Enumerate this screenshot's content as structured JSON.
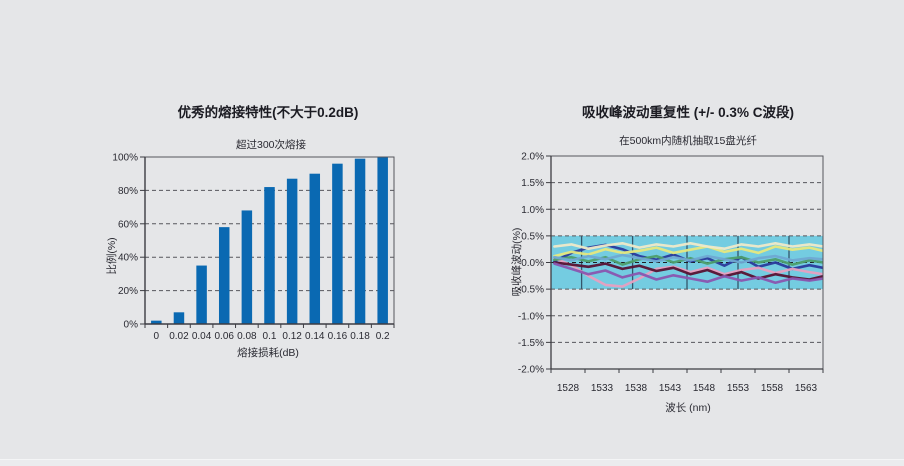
{
  "page": {
    "background": "#e5e6e8",
    "text_color": "#1b1b22"
  },
  "chart_data": [
    {
      "id": "splice-loss-distribution",
      "type": "bar",
      "title": "优秀的熔接特性(不大于0.2dB)",
      "subtitle": "超过300次熔接",
      "xlabel": "熔接损耗(dB)",
      "ylabel": "比例(%)",
      "categories": [
        "0",
        "0.02",
        "0.04",
        "0.06",
        "0.08",
        "0.1",
        "0.12",
        "0.14",
        "0.16",
        "0.18",
        "0.2"
      ],
      "values": [
        2,
        7,
        35,
        58,
        68,
        82,
        87,
        90,
        96,
        99,
        100
      ],
      "ylim": [
        0,
        100
      ],
      "ytick_values": [
        0,
        20,
        40,
        60,
        80,
        100
      ],
      "ytick_labels": [
        "0%",
        "20%",
        "40%",
        "60%",
        "80%",
        "100%"
      ],
      "grid_values": [
        20,
        40,
        60,
        80
      ],
      "grid": "horizontal-dashed",
      "legend": "none",
      "bar_color": "#0a69b2",
      "axis_color": "#3c3c42",
      "border_color": "#55555c",
      "grid_color": "#56565c"
    },
    {
      "id": "absorption-peak-repeatability",
      "type": "line",
      "title": "吸收峰波动重复性 (+/- 0.3% C波段)",
      "subtitle": "在500km内随机抽取15盘光纤",
      "xlabel": "波长 (nm)",
      "ylabel": "吸收峰波动(%)",
      "xlim": [
        1525.5,
        1565.5
      ],
      "ylim": [
        -2,
        2
      ],
      "x_tick_values": [
        1528,
        1533,
        1538,
        1543,
        1548,
        1553,
        1558,
        1563
      ],
      "x_tick_labels": [
        "1528",
        "1533",
        "1538",
        "1543",
        "1548",
        "1553",
        "1558",
        "1563"
      ],
      "ytick_values": [
        2,
        1.5,
        1,
        0.5,
        0,
        -0.5,
        -1,
        -1.5,
        -2
      ],
      "ytick_labels": [
        "2.0%",
        "1.5%",
        "1.0%",
        "0.5%",
        "0.0%",
        "-0.5%",
        "-1.0%",
        "-1.5%",
        "-2.0%"
      ],
      "grid_values": [
        1.5,
        1,
        -1,
        -1.5
      ],
      "grid": "horizontal-dashed",
      "legend": "none",
      "zero_line_value": 0,
      "axis_color": "#3c3c42",
      "border_color": "#55555c",
      "grid_color": "#56565c",
      "zero_line_color": "#1f1f24",
      "band": {
        "y_from": -0.5,
        "y_to": 0.5,
        "color": "#74cce1",
        "gridline_color": "#33566b",
        "gridlines_nm": [
          1530,
          1537.5,
          1545.5,
          1553,
          1560.5
        ]
      },
      "x": [
        1526,
        1528.5,
        1531,
        1533.5,
        1536,
        1538.5,
        1541,
        1543.5,
        1546,
        1548.5,
        1551,
        1553.5,
        1556,
        1558.5,
        1561,
        1563.5,
        1565.5
      ],
      "series": [
        {
          "name": "fiber-navy",
          "color": "#2a3a9b",
          "y": [
            0.02,
            0.18,
            0.28,
            0.33,
            0.25,
            0.12,
            0.05,
            0.15,
            0.02,
            0.08,
            -0.06,
            0.1,
            -0.08,
            0.0,
            -0.12,
            -0.05,
            -0.1
          ]
        },
        {
          "name": "fiber-yellow",
          "color": "#e6e77d",
          "y": [
            0.12,
            0.2,
            0.15,
            0.25,
            0.18,
            0.22,
            0.28,
            0.18,
            0.24,
            0.3,
            0.2,
            0.26,
            0.18,
            0.3,
            0.24,
            0.28,
            0.22
          ]
        },
        {
          "name": "fiber-pink",
          "color": "#e79fc0",
          "y": [
            0.08,
            -0.05,
            -0.25,
            -0.42,
            -0.45,
            -0.3,
            -0.12,
            -0.08,
            -0.18,
            -0.1,
            -0.22,
            -0.14,
            -0.1,
            -0.2,
            -0.12,
            -0.18,
            -0.22
          ]
        },
        {
          "name": "fiber-maroon",
          "color": "#571233",
          "y": [
            0.0,
            -0.04,
            -0.08,
            -0.02,
            -0.12,
            -0.06,
            -0.16,
            -0.1,
            -0.22,
            -0.14,
            -0.26,
            -0.18,
            -0.3,
            -0.22,
            -0.28,
            -0.32,
            -0.26
          ]
        },
        {
          "name": "fiber-purple",
          "color": "#8a55af",
          "y": [
            -0.02,
            -0.12,
            -0.22,
            -0.15,
            -0.28,
            -0.2,
            -0.32,
            -0.24,
            -0.3,
            -0.36,
            -0.26,
            -0.34,
            -0.28,
            -0.38,
            -0.3,
            -0.34,
            -0.3
          ]
        },
        {
          "name": "fiber-green",
          "color": "#4d9e6b",
          "y": [
            0.05,
            0.1,
            0.02,
            0.1,
            -0.04,
            0.06,
            0.12,
            0.0,
            0.08,
            -0.02,
            0.06,
            0.1,
            0.0,
            0.06,
            -0.04,
            0.04,
            0.0
          ]
        },
        {
          "name": "fiber-lightblue",
          "color": "#6fa8d2",
          "y": [
            0.1,
            0.04,
            0.12,
            0.06,
            0.14,
            0.08,
            0.02,
            0.1,
            0.04,
            0.12,
            0.06,
            0.0,
            0.08,
            0.12,
            0.04,
            0.08,
            0.06
          ]
        },
        {
          "name": "fiber-cream",
          "color": "#efe9c8",
          "y": [
            0.3,
            0.34,
            0.26,
            0.32,
            0.36,
            0.28,
            0.34,
            0.3,
            0.36,
            0.3,
            0.26,
            0.34,
            0.3,
            0.36,
            0.3,
            0.34,
            0.3
          ]
        }
      ]
    }
  ]
}
